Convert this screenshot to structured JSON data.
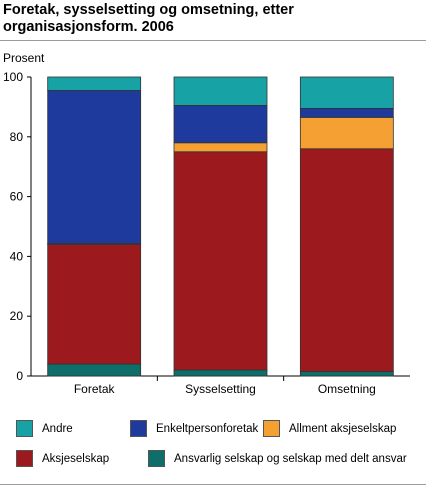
{
  "chart_data": {
    "type": "bar",
    "stacked": true,
    "title": "Foretak, sysselsetting og omsetning, etter organisasjonsform. 2006",
    "ylabel": "Prosent",
    "ylim": [
      0,
      100
    ],
    "yticks": [
      0,
      20,
      40,
      60,
      80,
      100
    ],
    "categories": [
      "Foretak",
      "Sysselsetting",
      "Omsetning"
    ],
    "series": [
      {
        "name": "Ansvarlig selskap og selskap med delt ansvar",
        "color": "#0d6e6a",
        "values": [
          4,
          2,
          1.5
        ]
      },
      {
        "name": "Aksjeselskap",
        "color": "#9c1a1e",
        "values": [
          40,
          73,
          74.5
        ]
      },
      {
        "name": "Allment aksjeselskap",
        "color": "#f5a033",
        "values": [
          0.3,
          3,
          10.5
        ]
      },
      {
        "name": "Enkeltpersonforetak",
        "color": "#1e3a9c",
        "values": [
          51.2,
          12.5,
          3
        ]
      },
      {
        "name": "Andre",
        "color": "#17a3a6",
        "values": [
          4.5,
          9.5,
          10.5
        ]
      }
    ],
    "grid": false,
    "legend_position": "bottom"
  },
  "legend": {
    "items": [
      {
        "label": "Andre",
        "color": "#17a3a6"
      },
      {
        "label": "Enkeltpersonforetak",
        "color": "#1e3a9c"
      },
      {
        "label": "Allment aksjeselskap",
        "color": "#f5a033"
      },
      {
        "label": "Aksjeselskap",
        "color": "#9c1a1e"
      },
      {
        "label": "Ansvarlig selskap og selskap med delt ansvar",
        "color": "#0d6e6a"
      }
    ]
  }
}
